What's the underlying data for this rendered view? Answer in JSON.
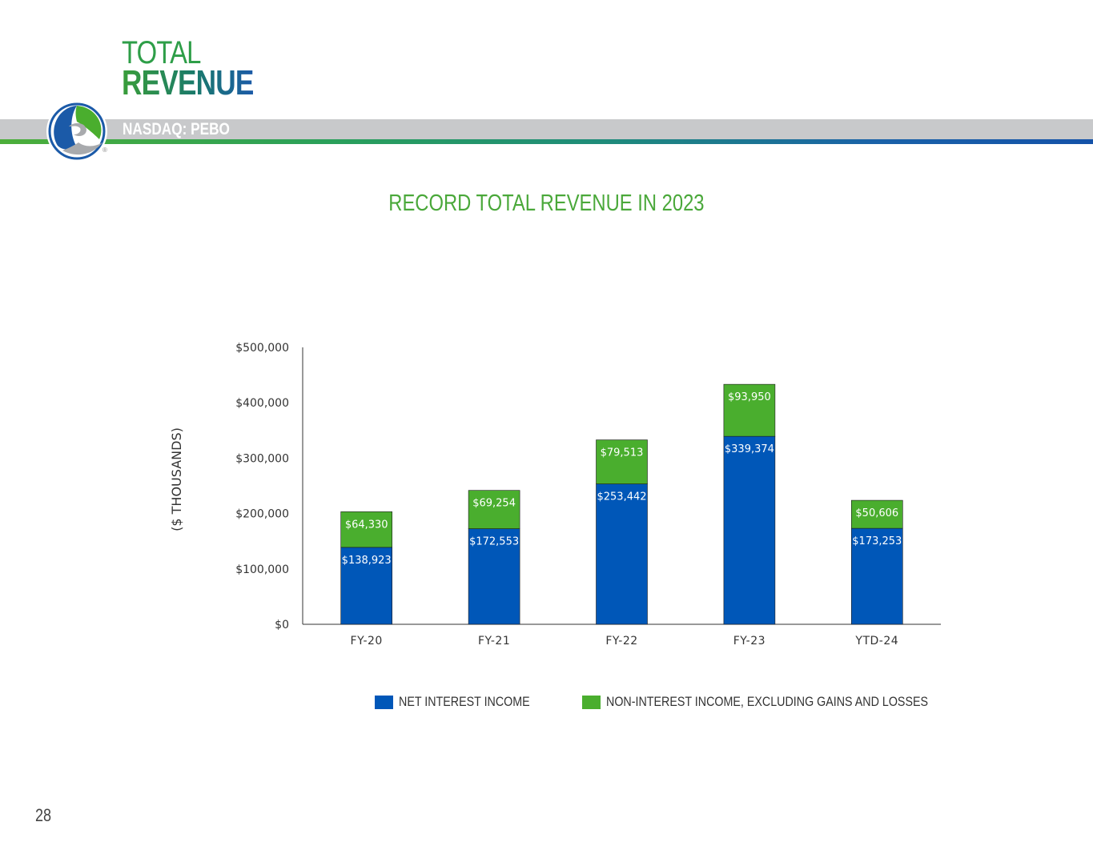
{
  "header": {
    "title_line1": "TOTAL",
    "title_line2": "REVENUE",
    "ticker": "NASDAQ: PEBO"
  },
  "colors": {
    "net_interest": "#0057b8",
    "non_interest": "#4aae2e",
    "title_green": "#4aa83a"
  },
  "chart_data": {
    "type": "bar",
    "stacked": true,
    "title": "RECORD TOTAL REVENUE IN 2023",
    "xlabel": "",
    "ylabel": "($ THOUSANDS)",
    "categories": [
      "FY-20",
      "FY-21",
      "FY-22",
      "FY-23",
      "YTD-24"
    ],
    "ylim": [
      0,
      500000
    ],
    "yticks": [
      0,
      100000,
      200000,
      300000,
      400000,
      500000
    ],
    "ytick_labels": [
      "$0",
      "$100,000",
      "$200,000",
      "$300,000",
      "$400,000",
      "$500,000"
    ],
    "series": [
      {
        "name": "NET INTEREST INCOME",
        "values": [
          138923,
          172553,
          253442,
          339374,
          173253
        ],
        "labels": [
          "$138,923",
          "$172,553",
          "$253,442",
          "$339,374",
          "$173,253"
        ]
      },
      {
        "name": "NON-INTEREST INCOME, EXCLUDING GAINS AND LOSSES",
        "values": [
          64330,
          69254,
          79513,
          93950,
          50606
        ],
        "labels": [
          "$64,330",
          "$69,254",
          "$79,513",
          "$93,950",
          "$50,606"
        ]
      }
    ],
    "grid": false,
    "legend_position": "bottom"
  },
  "page": {
    "number": "28"
  }
}
